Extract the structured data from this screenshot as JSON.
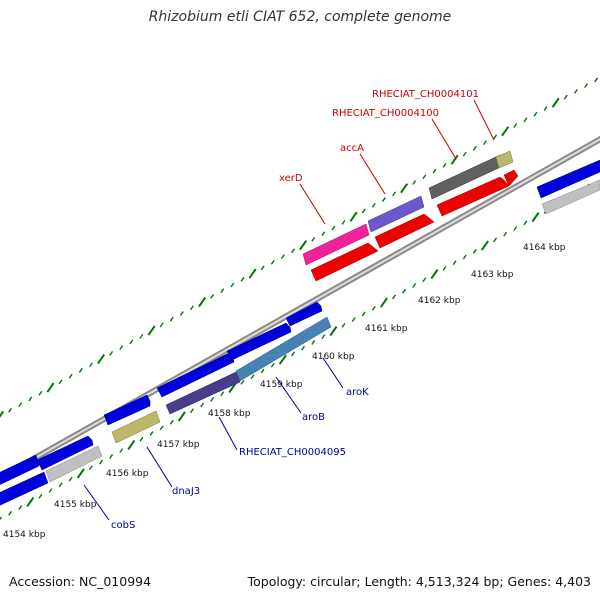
{
  "title": "Rhizobium etli CIAT 652, complete genome",
  "footer": {
    "accession": "Accession: NC_010994",
    "summary": "Topology: circular; Length: 4,513,324 bp; Genes: 4,403"
  },
  "ticks": [
    "4154 kbp",
    "4155 kbp",
    "4156 kbp",
    "4157 kbp",
    "4158 kbp",
    "4159 kbp",
    "4160 kbp",
    "4161 kbp",
    "4162 kbp",
    "4163 kbp",
    "4164 kbp"
  ],
  "gene_labels": {
    "forward": [
      "RHECIAT_CH0004101",
      "RHECIAT_CH0004100",
      "accA",
      "xerD"
    ],
    "reverse": [
      "cobS",
      "dnaJ3",
      "RHECIAT_CH0004095",
      "aroB",
      "aroK"
    ]
  },
  "colors": {
    "forward_label": "#cc0000",
    "reverse_label": "#000099",
    "red_cds": "#ee0000",
    "blue_cds": "#0000dd",
    "pink": "#ee2299",
    "violet": "#6a5acd",
    "dark_grey": "#606060",
    "khaki": "#bdb76b",
    "light_grey": "#c0c0c0",
    "dark_slate": "#483d8b",
    "steel_blue": "#4682b4",
    "tick": "#007700"
  }
}
